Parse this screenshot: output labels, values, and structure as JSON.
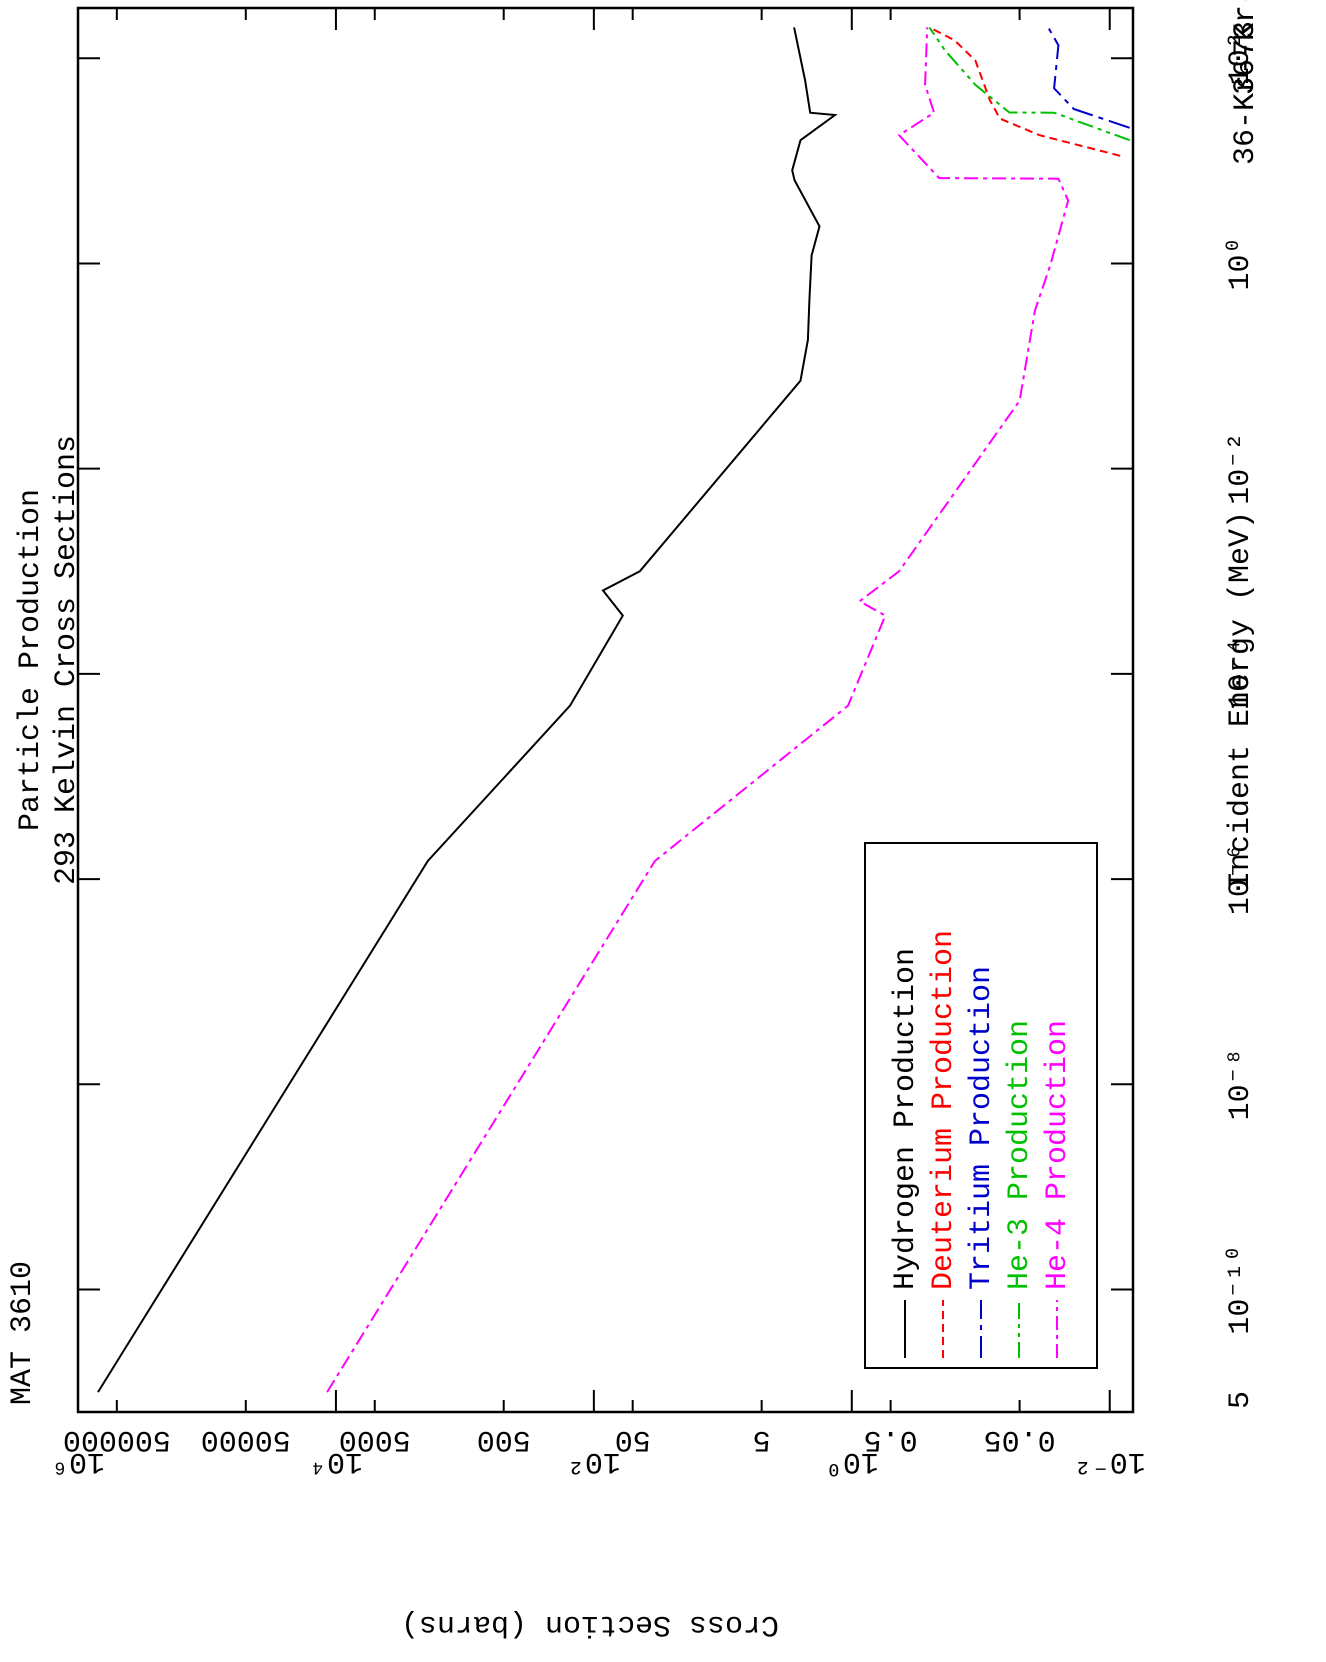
{
  "chart_data": {
    "type": "line",
    "title": "Particle Production",
    "subtitle": "293 Kelvin Cross Sections",
    "material": "MAT 3610",
    "nuclide_top": "36-Kr-73",
    "nuclide": "36-Kr-73",
    "x_label": "Incident Energy (MeV)",
    "y_label": "Cross Section (barns)",
    "x_log": true,
    "y_log": true,
    "xlim": [
      6.4e-12,
      309
    ],
    "ylim": [
      0.0066,
      1000000
    ],
    "xticks": [
      {
        "value": 5e-12,
        "label": "5"
      },
      {
        "value": 1e-10,
        "label": "10⁻¹⁰"
      },
      {
        "value": 1e-08,
        "label": "10⁻⁸"
      },
      {
        "value": 1e-06,
        "label": "10⁻⁶"
      },
      {
        "value": 0.0001,
        "label": "10⁻⁴"
      },
      {
        "value": 0.01,
        "label": "10⁻²"
      },
      {
        "value": 1,
        "label": "10⁰"
      },
      {
        "value": 100,
        "label": "10²"
      }
    ],
    "yticks": [
      {
        "value": 0.01,
        "label": "10⁻²"
      },
      0.05,
      0.5,
      5,
      50,
      500,
      5000,
      50000,
      500000,
      {
        "value": 1,
        "label": "10⁰"
      },
      {
        "value": 100,
        "label": "10²"
      },
      {
        "value": 10000,
        "label": "10⁴"
      },
      {
        "value": 1000000,
        "label": "10⁶"
      }
    ],
    "series": [
      {
        "name": "Hydrogen Production",
        "color": "#000000",
        "dash": "none",
        "x": [
          1e-11,
          1.5e-06,
          4.9e-05,
          0.00037,
          0.00065,
          0.001,
          0.072,
          0.18,
          0.44,
          1.2,
          2.3,
          6.5,
          8.1,
          15.9,
          28,
          29.5,
          61,
          200
        ],
        "values": [
          700000,
          1940,
          153,
          59.6,
          85,
          44,
          2.5,
          2.19,
          2.13,
          2.05,
          1.78,
          2.78,
          2.9,
          2.5,
          1.35,
          2.1,
          2.3,
          2.8
        ]
      },
      {
        "name": "Deuterium Production",
        "color": "#ff0000",
        "dash": "8,5",
        "x": [
          11.2,
          17.8,
          25.8,
          39,
          95,
          150,
          200
        ],
        "values": [
          0.0083,
          0.035,
          0.071,
          0.085,
          0.11,
          0.16,
          0.25
        ]
      },
      {
        "name": "Tritium Production",
        "color": "#0000cc",
        "dash": "22,6,5,6",
        "x": [
          21,
          32,
          51,
          134,
          200
        ],
        "values": [
          0.007,
          0.019,
          0.027,
          0.025,
          0.03
        ]
      },
      {
        "name": "He-3 Production",
        "color": "#00c000",
        "dash": "16,5,4,5,4,5",
        "x": [
          15.9,
          29.5,
          29.6,
          55,
          120,
          200
        ],
        "values": [
          0.007,
          0.027,
          0.06,
          0.11,
          0.19,
          0.25
        ]
      },
      {
        "name": "He-4 Production",
        "color": "#ff00ff",
        "dash": "14,5,4,5",
        "x": [
          1e-11,
          1.5e-06,
          4.9e-05,
          0.00037,
          0.00051,
          0.001,
          0.046,
          0.35,
          0.95,
          4.1,
          6.7,
          6.8,
          17.8,
          29.5,
          55,
          200
        ],
        "values": [
          11700,
          33.6,
          1.07,
          0.55,
          0.87,
          0.43,
          0.05,
          0.038,
          0.029,
          0.021,
          0.025,
          0.21,
          0.43,
          0.23,
          0.27,
          0.26
        ]
      }
    ]
  }
}
